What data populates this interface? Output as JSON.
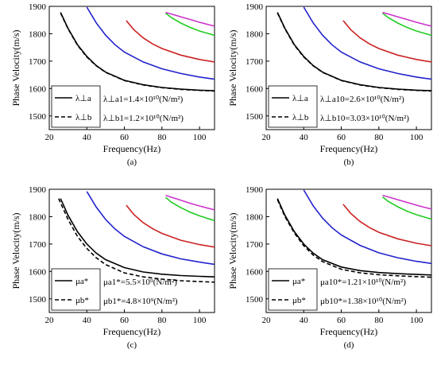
{
  "chart_data": [
    {
      "type": "line",
      "panel_label": "(a)",
      "xlabel": "Frequency(Hz)",
      "ylabel": "Phase Velocity(m/s)",
      "xlim": [
        20,
        108
      ],
      "ylim": [
        1450,
        1900
      ],
      "xticks": [
        20,
        40,
        60,
        80,
        100
      ],
      "yticks": [
        1500,
        1600,
        1700,
        1800,
        1900
      ],
      "legend": {
        "placement": "bottom-left",
        "entries": [
          "λ⊥a",
          "λ⊥b"
        ]
      },
      "annotations": [
        "λ⊥a1=1.4×10¹⁰(N/m²)",
        "λ⊥b1=1.2×10¹⁰(N/m²)"
      ],
      "series": [
        {
          "color": "#000000",
          "style": "solid",
          "x": [
            26,
            30,
            35,
            40,
            45,
            50,
            60,
            70,
            80,
            90,
            100,
            108
          ],
          "y": [
            1878,
            1820,
            1760,
            1717,
            1684,
            1660,
            1630,
            1614,
            1604,
            1598,
            1594,
            1592
          ]
        },
        {
          "color": "#000000",
          "style": "dashed",
          "x": [
            26,
            30,
            35,
            40,
            45,
            50,
            60,
            70,
            80,
            90,
            100,
            108
          ],
          "y": [
            1876,
            1818,
            1758,
            1715,
            1683,
            1659,
            1629,
            1613,
            1603,
            1597,
            1593,
            1591
          ]
        },
        {
          "color": "#2222cc",
          "style": "solid",
          "x": [
            40,
            45,
            50,
            55,
            60,
            70,
            80,
            90,
            100,
            108
          ],
          "y": [
            1897,
            1840,
            1795,
            1760,
            1733,
            1697,
            1672,
            1655,
            1642,
            1634
          ]
        },
        {
          "color": "#cc2222",
          "style": "solid",
          "x": [
            61,
            65,
            70,
            75,
            80,
            90,
            100,
            108
          ],
          "y": [
            1848,
            1815,
            1785,
            1763,
            1746,
            1722,
            1706,
            1697
          ]
        },
        {
          "color": "#22cc22",
          "style": "solid",
          "x": [
            82,
            85,
            90,
            95,
            100,
            105,
            108
          ],
          "y": [
            1875,
            1859,
            1839,
            1823,
            1810,
            1800,
            1794
          ]
        },
        {
          "color": "#cc33cc",
          "style": "solid",
          "x": [
            82,
            85,
            90,
            95,
            100,
            105,
            108
          ],
          "y": [
            1878,
            1872,
            1862,
            1852,
            1842,
            1833,
            1828
          ]
        }
      ]
    },
    {
      "type": "line",
      "panel_label": "(b)",
      "xlabel": "Frequency(Hz)",
      "ylabel": "Phase Velocity(m/s)",
      "xlim": [
        20,
        108
      ],
      "ylim": [
        1450,
        1900
      ],
      "xticks": [
        20,
        40,
        60,
        80,
        100
      ],
      "yticks": [
        1500,
        1600,
        1700,
        1800,
        1900
      ],
      "legend": {
        "placement": "bottom-left",
        "entries": [
          "λ⊥a",
          "λ⊥b"
        ]
      },
      "annotations": [
        "λ⊥a10=2.6×10¹⁰(N/m²)",
        "λ⊥b10=3.03×10¹⁰(N/m²)"
      ],
      "series": [
        {
          "color": "#000000",
          "style": "solid",
          "x": [
            26,
            30,
            35,
            40,
            45,
            50,
            60,
            70,
            80,
            90,
            100,
            108
          ],
          "y": [
            1878,
            1820,
            1760,
            1717,
            1684,
            1660,
            1630,
            1614,
            1604,
            1598,
            1594,
            1592
          ]
        },
        {
          "color": "#000000",
          "style": "dashed",
          "x": [
            26,
            30,
            35,
            40,
            45,
            50,
            60,
            70,
            80,
            90,
            100,
            108
          ],
          "y": [
            1876,
            1818,
            1758,
            1715,
            1683,
            1659,
            1629,
            1613,
            1603,
            1597,
            1593,
            1591
          ]
        },
        {
          "color": "#2222cc",
          "style": "solid",
          "x": [
            40,
            45,
            50,
            55,
            60,
            70,
            80,
            90,
            100,
            108
          ],
          "y": [
            1897,
            1840,
            1795,
            1760,
            1733,
            1697,
            1672,
            1655,
            1642,
            1634
          ]
        },
        {
          "color": "#cc2222",
          "style": "solid",
          "x": [
            61,
            65,
            70,
            75,
            80,
            90,
            100,
            108
          ],
          "y": [
            1848,
            1815,
            1785,
            1763,
            1746,
            1722,
            1706,
            1697
          ]
        },
        {
          "color": "#22cc22",
          "style": "solid",
          "x": [
            82,
            85,
            90,
            95,
            100,
            105,
            108
          ],
          "y": [
            1875,
            1859,
            1839,
            1823,
            1810,
            1800,
            1794
          ]
        },
        {
          "color": "#cc33cc",
          "style": "solid",
          "x": [
            82,
            85,
            90,
            95,
            100,
            105,
            108
          ],
          "y": [
            1878,
            1872,
            1862,
            1852,
            1842,
            1833,
            1828
          ]
        }
      ]
    },
    {
      "type": "line",
      "panel_label": "(c)",
      "xlabel": "Frequency(Hz)",
      "ylabel": "Phase Velocity(m/s)",
      "xlim": [
        20,
        108
      ],
      "ylim": [
        1450,
        1900
      ],
      "xticks": [
        20,
        40,
        60,
        80,
        100
      ],
      "yticks": [
        1500,
        1600,
        1700,
        1800,
        1900
      ],
      "legend": {
        "placement": "bottom-left",
        "entries": [
          "μa*",
          "μb*"
        ]
      },
      "annotations": [
        "μa1*=5.5×10⁹(N/m²)",
        "μb1*=4.8×10⁹(N/m²)"
      ],
      "series": [
        {
          "color": "#000000",
          "style": "solid",
          "x": [
            26,
            30,
            35,
            40,
            45,
            50,
            60,
            70,
            80,
            90,
            100,
            108
          ],
          "y": [
            1866,
            1805,
            1745,
            1700,
            1667,
            1643,
            1614,
            1598,
            1590,
            1585,
            1582,
            1580
          ]
        },
        {
          "color": "#000000",
          "style": "dashed",
          "x": [
            25,
            30,
            35,
            40,
            45,
            50,
            60,
            70,
            80,
            90,
            100,
            108
          ],
          "y": [
            1866,
            1790,
            1728,
            1684,
            1650,
            1625,
            1595,
            1580,
            1572,
            1566,
            1563,
            1561
          ]
        },
        {
          "color": "#2222cc",
          "style": "solid",
          "x": [
            40,
            45,
            50,
            55,
            60,
            70,
            80,
            90,
            100,
            108
          ],
          "y": [
            1892,
            1835,
            1790,
            1755,
            1728,
            1690,
            1664,
            1646,
            1634,
            1626
          ]
        },
        {
          "color": "#cc2222",
          "style": "solid",
          "x": [
            61,
            65,
            70,
            75,
            80,
            90,
            100,
            108
          ],
          "y": [
            1842,
            1808,
            1778,
            1756,
            1739,
            1714,
            1698,
            1689
          ]
        },
        {
          "color": "#22cc22",
          "style": "solid",
          "x": [
            82,
            85,
            90,
            95,
            100,
            105,
            108
          ],
          "y": [
            1870,
            1853,
            1833,
            1816,
            1803,
            1792,
            1786
          ]
        },
        {
          "color": "#cc33cc",
          "style": "solid",
          "x": [
            82,
            85,
            90,
            95,
            100,
            105,
            108
          ],
          "y": [
            1878,
            1871,
            1860,
            1849,
            1839,
            1830,
            1825
          ]
        }
      ]
    },
    {
      "type": "line",
      "panel_label": "(d)",
      "xlabel": "Frequency(Hz)",
      "ylabel": "Phase Velocity(m/s)",
      "xlim": [
        20,
        108
      ],
      "ylim": [
        1450,
        1900
      ],
      "xticks": [
        20,
        40,
        60,
        80,
        100
      ],
      "yticks": [
        1500,
        1600,
        1700,
        1800,
        1900
      ],
      "legend": {
        "placement": "bottom-left",
        "entries": [
          "μa*",
          "μb*"
        ]
      },
      "annotations": [
        "μa10*=1.21×10¹⁰(N/m²)",
        "μb10*=1.38×10¹⁰(N/m²)"
      ],
      "series": [
        {
          "color": "#000000",
          "style": "solid",
          "x": [
            26,
            30,
            35,
            40,
            45,
            50,
            60,
            70,
            80,
            90,
            100,
            108
          ],
          "y": [
            1866,
            1805,
            1745,
            1700,
            1667,
            1643,
            1616,
            1603,
            1596,
            1592,
            1589,
            1587
          ]
        },
        {
          "color": "#000000",
          "style": "dashed",
          "x": [
            26,
            30,
            35,
            40,
            45,
            50,
            60,
            70,
            80,
            90,
            100,
            108
          ],
          "y": [
            1862,
            1800,
            1740,
            1694,
            1660,
            1636,
            1608,
            1595,
            1588,
            1584,
            1581,
            1579
          ]
        },
        {
          "color": "#2222cc",
          "style": "solid",
          "x": [
            40,
            45,
            50,
            55,
            60,
            70,
            80,
            90,
            100,
            108
          ],
          "y": [
            1897,
            1840,
            1795,
            1760,
            1733,
            1695,
            1668,
            1650,
            1637,
            1629
          ]
        },
        {
          "color": "#cc2222",
          "style": "solid",
          "x": [
            61,
            65,
            70,
            75,
            80,
            90,
            100,
            108
          ],
          "y": [
            1845,
            1812,
            1782,
            1760,
            1743,
            1719,
            1703,
            1694
          ]
        },
        {
          "color": "#22cc22",
          "style": "solid",
          "x": [
            82,
            85,
            90,
            95,
            100,
            105,
            108
          ],
          "y": [
            1872,
            1856,
            1836,
            1820,
            1807,
            1797,
            1791
          ]
        },
        {
          "color": "#cc33cc",
          "style": "solid",
          "x": [
            82,
            85,
            90,
            95,
            100,
            105,
            108
          ],
          "y": [
            1878,
            1872,
            1862,
            1852,
            1842,
            1833,
            1828
          ]
        }
      ]
    }
  ]
}
